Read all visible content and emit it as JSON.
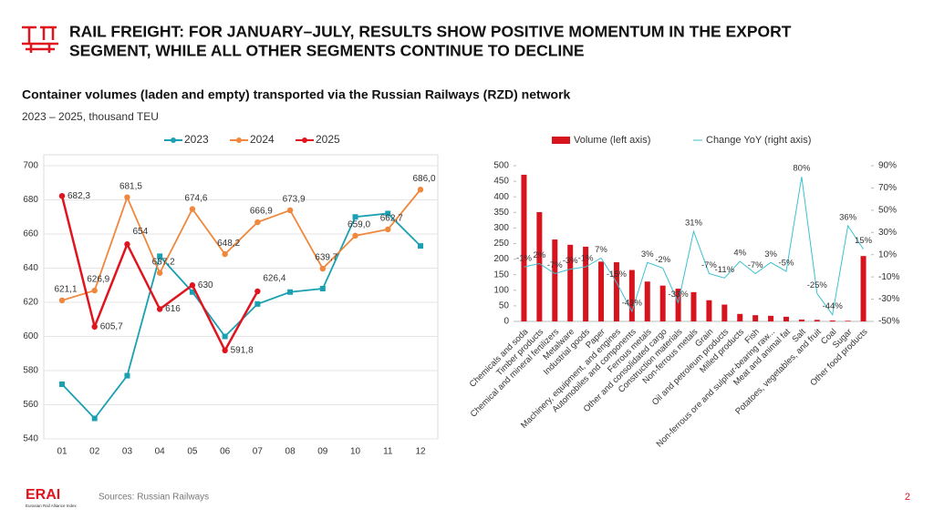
{
  "header": {
    "title_lines": [
      "RAIL FREIGHT: FOR JANUARY–JULY, RESULTS SHOW POSITIVE MOMENTUM IN THE EXPORT",
      "SEGMENT, WHILE ALL OTHER SEGMENTS CONTINUE TO DECLINE"
    ],
    "subtitle": "Container volumes (laden and empty) transported via the Russian Railways (RZD) network",
    "note": "2023 – 2025, thousand TEU"
  },
  "footer": {
    "logo": "ERAI",
    "logo_caption": "Eurasian Rail Alliance Index",
    "source": "Sources: Russian Railways",
    "page": "2"
  },
  "chart_data": [
    {
      "type": "line",
      "categories": [
        "01",
        "02",
        "03",
        "04",
        "05",
        "06",
        "07",
        "08",
        "09",
        "10",
        "11",
        "12"
      ],
      "ylim": [
        540,
        700
      ],
      "yticks": [
        540,
        560,
        580,
        600,
        620,
        640,
        660,
        680,
        700
      ],
      "grid": true,
      "series": [
        {
          "name": "2023",
          "color": "#1ba0b2",
          "marker": "square",
          "values": [
            572,
            552,
            577,
            647,
            626,
            600,
            619,
            626,
            628,
            670,
            672,
            653
          ]
        },
        {
          "name": "2024",
          "color": "#ef873d",
          "marker": "circle",
          "values": [
            621.1,
            626.9,
            681.5,
            637.2,
            674.6,
            648.2,
            666.9,
            673.9,
            639.7,
            659.0,
            662.7,
            686.0
          ],
          "value_labels": [
            "621,1",
            "626,9",
            "681,5",
            "637,2",
            "674,6",
            "648,2",
            "666,9",
            "673,9",
            "639,7",
            "659,0",
            "662,7",
            "686,0"
          ]
        },
        {
          "name": "2025",
          "color": "#e0141e",
          "marker": "circle",
          "values": [
            682.3,
            605.7,
            654,
            616,
            630,
            591.8,
            626.4,
            null,
            null,
            null,
            null,
            null
          ],
          "value_labels": [
            "682,3",
            "605,7",
            "654",
            "616",
            "630",
            "591,8",
            "626,4",
            null,
            null,
            null,
            null,
            null
          ]
        }
      ]
    },
    {
      "type": "bar",
      "categories": [
        "Chemicals and soda",
        "Timber products",
        "Chemical and mineral fertilizers",
        "Metalware",
        "Industrial goods",
        "Paper",
        "Machinery, equipment, and engines",
        "Automobiles and components",
        "Ferrous metals",
        "Other and consolidated cargo",
        "Construction materials",
        "Non-ferrous metals",
        "Grain",
        "Oil and petroleum products",
        "Milled products",
        "Fish",
        "Non-ferrous ore and sulphur-bearing raw...",
        "Meat and animal fat",
        "Salt",
        "Potatoes, vegetables, and fruit",
        "Coal",
        "Sugar",
        "Other food products"
      ],
      "ylim": [
        0,
        500
      ],
      "yticks": [
        0,
        50,
        100,
        150,
        200,
        250,
        300,
        350,
        400,
        450,
        500
      ],
      "y2lim": [
        -50,
        90
      ],
      "y2ticks": [
        {
          "value": -50,
          "label": "-50%"
        },
        {
          "value": -30,
          "label": "-30%"
        },
        {
          "value": -10,
          "label": "-10%"
        },
        {
          "value": 10,
          "label": "10%"
        },
        {
          "value": 30,
          "label": "30%"
        },
        {
          "value": 50,
          "label": "50%"
        },
        {
          "value": 70,
          "label": "70%"
        },
        {
          "value": 90,
          "label": "90%"
        }
      ],
      "series": [
        {
          "name": "Volume (left axis)",
          "color": "#d7141e",
          "values": [
            471,
            351,
            263,
            246,
            240,
            192,
            190,
            165,
            128,
            115,
            105,
            94,
            68,
            54,
            24,
            20,
            18,
            15,
            6,
            5,
            3,
            2,
            210
          ]
        },
        {
          "name": "Change YoY (right axis)",
          "color": "#3cc0cf",
          "type": "line",
          "axis": "y2",
          "values": [
            -1,
            2,
            -7,
            -3,
            -1,
            7,
            -15,
            -41,
            3,
            -2,
            -33,
            31,
            -7,
            -11,
            4,
            -7,
            3,
            -5,
            80,
            -25,
            -44,
            36,
            15
          ],
          "value_labels": [
            "-1%",
            "2%",
            "-7%",
            "-3%",
            "-1%",
            "7%",
            "-15%",
            "-41%",
            "3%",
            "-2%",
            "-33%",
            "31%",
            "-7%",
            "-11%",
            "4%",
            "-7%",
            "3%",
            "-5%",
            "80%",
            "-25%",
            "-44%",
            "36%",
            "15%"
          ]
        }
      ]
    }
  ]
}
